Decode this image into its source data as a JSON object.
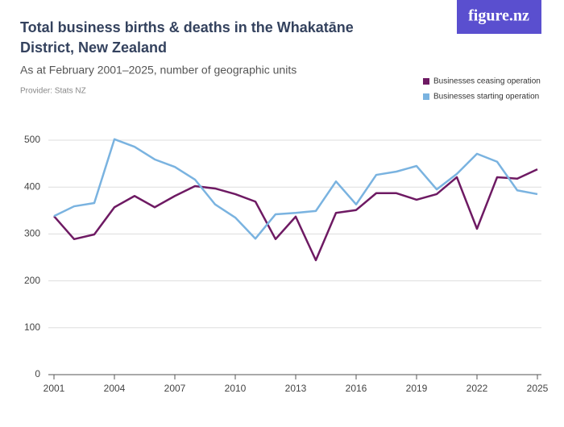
{
  "logo": "figure.nz",
  "chart_data": {
    "type": "line",
    "title": "Total business births & deaths in the Whakatāne District, New Zealand",
    "subtitle": "As at February 2001–2025, number of geographic units",
    "source": "Provider: Stats NZ",
    "x": [
      2001,
      2002,
      2003,
      2004,
      2005,
      2006,
      2007,
      2008,
      2009,
      2010,
      2011,
      2012,
      2013,
      2014,
      2015,
      2016,
      2017,
      2018,
      2019,
      2020,
      2021,
      2022,
      2023,
      2024,
      2025
    ],
    "series": [
      {
        "name": "Businesses ceasing operation",
        "color": "#6e1a63",
        "values": [
          338,
          289,
          299,
          357,
          381,
          357,
          381,
          402,
          397,
          385,
          369,
          289,
          337,
          244,
          345,
          351,
          387,
          387,
          373,
          385,
          421,
          311,
          421,
          418,
          438
        ]
      },
      {
        "name": "Businesses starting operation",
        "color": "#7ab3e0",
        "values": [
          338,
          359,
          366,
          502,
          486,
          459,
          443,
          416,
          363,
          335,
          290,
          342,
          345,
          349,
          412,
          363,
          426,
          433,
          445,
          395,
          428,
          471,
          454,
          393,
          385
        ]
      }
    ],
    "xlim": [
      2001,
      2025
    ],
    "xticks": [
      2001,
      2004,
      2007,
      2010,
      2013,
      2016,
      2019,
      2022,
      2025
    ],
    "ylim": [
      0,
      500
    ],
    "yticks": [
      0,
      100,
      200,
      300,
      400,
      500
    ],
    "grid": true
  }
}
